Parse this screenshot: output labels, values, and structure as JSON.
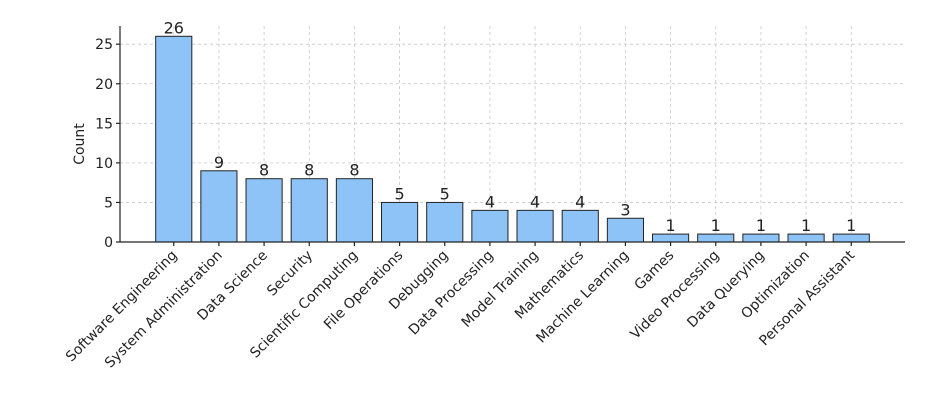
{
  "chart_data": {
    "type": "bar",
    "y_label": "Count",
    "categories": [
      "Software Engineering",
      "System Administration",
      "Data Science",
      "Security",
      "Scientific Computing",
      "File Operations",
      "Debugging",
      "Data Processing",
      "Model Training",
      "Mathematics",
      "Machine Learning",
      "Games",
      "Video Processing",
      "Data Querying",
      "Optimization",
      "Personal Assistant"
    ],
    "values": [
      26,
      9,
      8,
      8,
      8,
      5,
      5,
      4,
      4,
      4,
      3,
      1,
      1,
      1,
      1,
      1
    ],
    "color": "#8ec3f7",
    "ylim": [
      0,
      27.3
    ],
    "yticks": [
      0,
      5,
      10,
      15,
      20,
      25
    ],
    "grid": true
  }
}
